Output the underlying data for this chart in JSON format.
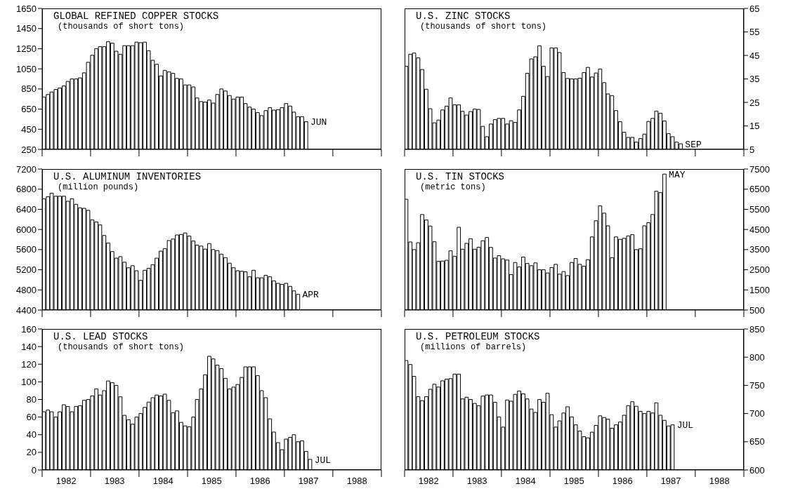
{
  "chart_data": [
    {
      "type": "bar",
      "title": "GLOBAL REFINED COPPER STOCKS",
      "subtitle": "(thousands of short tons)",
      "color": "#ffffff",
      "tick_labels": "y",
      "x": [
        "1982-01",
        "1982-02",
        "1982-03",
        "1982-04",
        "1982-05",
        "1982-06",
        "1982-07",
        "1982-08",
        "1982-09",
        "1982-10",
        "1982-11",
        "1982-12",
        "1983-01",
        "1983-02",
        "1983-03",
        "1983-04",
        "1983-05",
        "1983-06",
        "1983-07",
        "1983-08",
        "1983-09",
        "1983-10",
        "1983-11",
        "1983-12",
        "1984-01",
        "1984-02",
        "1984-03",
        "1984-04",
        "1984-05",
        "1984-06",
        "1984-07",
        "1984-08",
        "1984-09",
        "1984-10",
        "1984-11",
        "1984-12",
        "1985-01",
        "1985-02",
        "1985-03",
        "1985-04",
        "1985-05",
        "1985-06",
        "1985-07",
        "1985-08",
        "1985-09",
        "1985-10",
        "1985-11",
        "1985-12",
        "1986-01",
        "1986-02",
        "1986-03",
        "1986-04",
        "1986-05",
        "1986-06",
        "1986-07",
        "1986-08",
        "1986-09",
        "1986-10",
        "1986-11",
        "1986-12",
        "1987-01",
        "1987-02",
        "1987-03",
        "1987-04",
        "1987-05",
        "1987-06"
      ],
      "values": [
        770,
        795,
        820,
        845,
        860,
        880,
        925,
        950,
        950,
        960,
        1010,
        1115,
        1185,
        1250,
        1270,
        1270,
        1320,
        1305,
        1225,
        1195,
        1280,
        1280,
        1280,
        1315,
        1310,
        1315,
        1230,
        1135,
        1095,
        980,
        1035,
        1020,
        1005,
        955,
        950,
        890,
        890,
        870,
        760,
        725,
        720,
        740,
        710,
        795,
        850,
        830,
        785,
        750,
        770,
        770,
        705,
        670,
        650,
        615,
        585,
        635,
        665,
        640,
        645,
        665,
        705,
        680,
        620,
        575,
        575,
        525
      ],
      "xlim": [
        "1982-01-01",
        "1989-01-01"
      ],
      "xticks": [
        {
          "value": "1982-01-01",
          "label": null
        },
        {
          "value": "1983-01-01",
          "label": null
        },
        {
          "value": "1984-01-01",
          "label": null
        },
        {
          "value": "1985-01-01",
          "label": null
        },
        {
          "value": "1986-01-01",
          "label": null
        },
        {
          "value": "1987-01-01",
          "label": null
        },
        {
          "value": "1988-01-01",
          "label": null
        },
        {
          "value": "1989-01-01",
          "label": null
        }
      ],
      "ylim": [
        250,
        1650
      ],
      "yticks": [
        250,
        450,
        650,
        850,
        1050,
        1250,
        1450,
        1650
      ],
      "annotations": [
        {
          "text": "JUN",
          "x": "1987-06",
          "y": 525
        }
      ]
    },
    {
      "type": "bar",
      "title": "U.S. ZINC STOCKS",
      "subtitle": "(thousands of short tons)",
      "color": "#ffffff",
      "tick_labels": "y",
      "x": [
        "1982-01",
        "1982-02",
        "1982-03",
        "1982-04",
        "1982-05",
        "1982-06",
        "1982-07",
        "1982-08",
        "1982-09",
        "1982-10",
        "1982-11",
        "1982-12",
        "1983-01",
        "1983-02",
        "1983-03",
        "1983-04",
        "1983-05",
        "1983-06",
        "1983-07",
        "1983-08",
        "1983-09",
        "1983-10",
        "1983-11",
        "1983-12",
        "1984-01",
        "1984-02",
        "1984-03",
        "1984-04",
        "1984-05",
        "1984-06",
        "1984-07",
        "1984-08",
        "1984-09",
        "1984-10",
        "1984-11",
        "1984-12",
        "1985-01",
        "1985-02",
        "1985-03",
        "1985-04",
        "1985-05",
        "1985-06",
        "1985-07",
        "1985-08",
        "1985-09",
        "1985-10",
        "1985-11",
        "1985-12",
        "1986-01",
        "1986-02",
        "1986-03",
        "1986-04",
        "1986-05",
        "1986-06",
        "1986-07",
        "1986-08",
        "1986-09",
        "1986-10",
        "1986-11",
        "1986-12",
        "1987-01",
        "1987-02",
        "1987-03",
        "1987-04",
        "1987-05",
        "1987-06",
        "1987-07",
        "1987-08",
        "1987-09"
      ],
      "values": [
        40.4,
        45.5,
        46,
        44,
        39,
        30.6,
        22.3,
        16.3,
        17.5,
        21.8,
        23.4,
        26.9,
        24,
        24,
        21.2,
        19.6,
        21.1,
        22.2,
        22,
        14.8,
        10.4,
        15.8,
        17.7,
        18.2,
        18.2,
        15.8,
        17.2,
        16.5,
        21.8,
        27.6,
        37.4,
        43.5,
        44.4,
        49.1,
        40.4,
        36,
        48.2,
        48.2,
        46.2,
        37.7,
        35.2,
        35,
        35,
        35.3,
        37.7,
        39.9,
        35.8,
        37.5,
        39.2,
        33.4,
        28.6,
        27.9,
        21.5,
        16.8,
        12.3,
        10.1,
        10.1,
        8.1,
        9.6,
        11.5,
        16.9,
        18.2,
        21.3,
        20.4,
        17.1,
        11.7,
        10.4,
        8.1,
        7.4
      ],
      "xlim": [
        "1982-01-01",
        "1989-01-01"
      ],
      "xticks": [
        {
          "value": "1982-01-01",
          "label": null
        },
        {
          "value": "1983-01-01",
          "label": null
        },
        {
          "value": "1984-01-01",
          "label": null
        },
        {
          "value": "1985-01-01",
          "label": null
        },
        {
          "value": "1986-01-01",
          "label": null
        },
        {
          "value": "1987-01-01",
          "label": null
        },
        {
          "value": "1988-01-01",
          "label": null
        },
        {
          "value": "1989-01-01",
          "label": null
        }
      ],
      "ylim": [
        5,
        65
      ],
      "yticks": [
        5,
        15,
        25,
        35,
        45,
        55,
        65
      ],
      "annotations": [
        {
          "text": "SEP",
          "x": "1987-09",
          "y": 7.4
        }
      ]
    },
    {
      "type": "bar",
      "title": "U.S. ALUMINUM INVENTORIES",
      "subtitle": "(million pounds)",
      "color": "#ffffff",
      "tick_labels": "y",
      "x": [
        "1982-01",
        "1982-02",
        "1982-03",
        "1982-04",
        "1982-05",
        "1982-06",
        "1982-07",
        "1982-08",
        "1982-09",
        "1982-10",
        "1982-11",
        "1982-12",
        "1983-01",
        "1983-02",
        "1983-03",
        "1983-04",
        "1983-05",
        "1983-06",
        "1983-07",
        "1983-08",
        "1983-09",
        "1983-10",
        "1983-11",
        "1983-12",
        "1984-01",
        "1984-02",
        "1984-03",
        "1984-04",
        "1984-05",
        "1984-06",
        "1984-07",
        "1984-08",
        "1984-09",
        "1984-10",
        "1984-11",
        "1984-12",
        "1985-01",
        "1985-02",
        "1985-03",
        "1985-04",
        "1985-05",
        "1985-06",
        "1985-07",
        "1985-08",
        "1985-09",
        "1985-10",
        "1985-11",
        "1985-12",
        "1986-01",
        "1986-02",
        "1986-03",
        "1986-04",
        "1986-05",
        "1986-06",
        "1986-07",
        "1986-08",
        "1986-09",
        "1986-10",
        "1986-11",
        "1986-12",
        "1987-01",
        "1987-02",
        "1987-03",
        "1987-04"
      ],
      "values": [
        6610,
        6650,
        6720,
        6660,
        6660,
        6660,
        6560,
        6610,
        6500,
        6430,
        6420,
        6380,
        6190,
        6150,
        6090,
        5880,
        5730,
        5560,
        5430,
        5460,
        5350,
        5240,
        5280,
        5180,
        4990,
        5190,
        5230,
        5300,
        5430,
        5570,
        5620,
        5780,
        5810,
        5890,
        5900,
        5930,
        5870,
        5770,
        5690,
        5670,
        5610,
        5720,
        5600,
        5580,
        5510,
        5440,
        5330,
        5240,
        5180,
        5170,
        5160,
        5060,
        5190,
        5040,
        5040,
        5090,
        5060,
        4980,
        4930,
        4910,
        4930,
        4870,
        4780,
        4710
      ],
      "xlim": [
        "1982-01-01",
        "1989-01-01"
      ],
      "xticks": [
        {
          "value": "1982-01-01",
          "label": null
        },
        {
          "value": "1983-01-01",
          "label": null
        },
        {
          "value": "1984-01-01",
          "label": null
        },
        {
          "value": "1985-01-01",
          "label": null
        },
        {
          "value": "1986-01-01",
          "label": null
        },
        {
          "value": "1987-01-01",
          "label": null
        },
        {
          "value": "1988-01-01",
          "label": null
        },
        {
          "value": "1989-01-01",
          "label": null
        }
      ],
      "ylim": [
        4400,
        7200
      ],
      "yticks": [
        4400,
        4800,
        5200,
        5600,
        6000,
        6400,
        6800,
        7200
      ],
      "annotations": [
        {
          "text": "APR",
          "x": "1987-04",
          "y": 4710
        }
      ]
    },
    {
      "type": "bar",
      "title": "U.S. TIN STOCKS",
      "subtitle": "(metric tons)",
      "color": "#ffffff",
      "tick_labels": "y",
      "x": [
        "1982-01",
        "1982-02",
        "1982-03",
        "1982-04",
        "1982-05",
        "1982-06",
        "1982-07",
        "1982-08",
        "1982-09",
        "1982-10",
        "1982-11",
        "1982-12",
        "1983-01",
        "1983-02",
        "1983-03",
        "1983-04",
        "1983-05",
        "1983-06",
        "1983-07",
        "1983-08",
        "1983-09",
        "1983-10",
        "1983-11",
        "1983-12",
        "1984-01",
        "1984-02",
        "1984-03",
        "1984-04",
        "1984-05",
        "1984-06",
        "1984-07",
        "1984-08",
        "1984-09",
        "1984-10",
        "1984-11",
        "1984-12",
        "1985-01",
        "1985-02",
        "1985-03",
        "1985-04",
        "1985-05",
        "1985-06",
        "1985-07",
        "1985-08",
        "1985-09",
        "1985-10",
        "1985-11",
        "1985-12",
        "1986-01",
        "1986-02",
        "1986-03",
        "1986-04",
        "1986-05",
        "1986-06",
        "1986-07",
        "1986-08",
        "1986-09",
        "1986-10",
        "1986-11",
        "1986-12",
        "1987-01",
        "1987-02",
        "1987-03",
        "1987-04",
        "1987-05"
      ],
      "values": [
        6000,
        3880,
        3500,
        3840,
        5240,
        4970,
        4670,
        3890,
        2920,
        2930,
        2970,
        3440,
        3170,
        4610,
        3520,
        3810,
        4040,
        3520,
        3620,
        3940,
        4100,
        3610,
        3080,
        3200,
        3040,
        2980,
        2260,
        2860,
        2640,
        3130,
        2810,
        2700,
        2840,
        2500,
        2500,
        2340,
        2610,
        2770,
        2280,
        2410,
        2210,
        2860,
        3060,
        2770,
        2680,
        3000,
        4130,
        4930,
        5670,
        5310,
        4680,
        3100,
        4130,
        4010,
        4060,
        4180,
        4240,
        3500,
        3540,
        4680,
        4840,
        5240,
        6400,
        6330,
        7250
      ],
      "xlim": [
        "1982-01-01",
        "1989-01-01"
      ],
      "xticks": [
        {
          "value": "1982-01-01",
          "label": null
        },
        {
          "value": "1983-01-01",
          "label": null
        },
        {
          "value": "1984-01-01",
          "label": null
        },
        {
          "value": "1985-01-01",
          "label": null
        },
        {
          "value": "1986-01-01",
          "label": null
        },
        {
          "value": "1987-01-01",
          "label": null
        },
        {
          "value": "1988-01-01",
          "label": null
        },
        {
          "value": "1989-01-01",
          "label": null
        }
      ],
      "ylim": [
        500,
        7500
      ],
      "yticks": [
        500,
        1500,
        2500,
        3500,
        4500,
        5500,
        6500,
        7500
      ],
      "annotations": [
        {
          "text": "MAY",
          "x": "1987-05",
          "y": 7250
        }
      ]
    },
    {
      "type": "bar",
      "title": "U.S. LEAD STOCKS",
      "subtitle": "(thousands of short tons)",
      "color": "#ffffff",
      "x": [
        "1982-01",
        "1982-02",
        "1982-03",
        "1982-04",
        "1982-05",
        "1982-06",
        "1982-07",
        "1982-08",
        "1982-09",
        "1982-10",
        "1982-11",
        "1982-12",
        "1983-01",
        "1983-02",
        "1983-03",
        "1983-04",
        "1983-05",
        "1983-06",
        "1983-07",
        "1983-08",
        "1983-09",
        "1983-10",
        "1983-11",
        "1983-12",
        "1984-01",
        "1984-02",
        "1984-03",
        "1984-04",
        "1984-05",
        "1984-06",
        "1984-07",
        "1984-08",
        "1984-09",
        "1984-10",
        "1984-11",
        "1984-12",
        "1985-01",
        "1985-02",
        "1985-03",
        "1985-04",
        "1985-05",
        "1985-06",
        "1985-07",
        "1985-08",
        "1985-09",
        "1985-10",
        "1985-11",
        "1985-12",
        "1986-01",
        "1986-02",
        "1986-03",
        "1986-04",
        "1986-05",
        "1986-06",
        "1986-07",
        "1986-08",
        "1986-09",
        "1986-10",
        "1986-11",
        "1986-12",
        "1987-01",
        "1987-02",
        "1987-03",
        "1987-04",
        "1987-05",
        "1987-06",
        "1987-07"
      ],
      "values": [
        66,
        68,
        66,
        60,
        66,
        74,
        72,
        66,
        72,
        73,
        79,
        80,
        84,
        92,
        85,
        90,
        101,
        99,
        96,
        83,
        62,
        57,
        52,
        60,
        64,
        71,
        77,
        82,
        85,
        84,
        86,
        79,
        65,
        67,
        54,
        50,
        49,
        60,
        80,
        92,
        108,
        129,
        126,
        119,
        115,
        104,
        92,
        94,
        97,
        105,
        117,
        117,
        117,
        107,
        90,
        82,
        58,
        43,
        31,
        23,
        35,
        37,
        40,
        32,
        33,
        21,
        12
      ],
      "xlim": [
        "1982-01-01",
        "1989-01-01"
      ],
      "xticks": [
        {
          "value": "1982-01-01",
          "label": null
        },
        {
          "value": "1982-07-01",
          "label": "1982"
        },
        {
          "value": "1983-01-01",
          "label": null
        },
        {
          "value": "1983-07-01",
          "label": "1983"
        },
        {
          "value": "1984-01-01",
          "label": null
        },
        {
          "value": "1984-07-01",
          "label": "1984"
        },
        {
          "value": "1985-01-01",
          "label": null
        },
        {
          "value": "1985-07-01",
          "label": "1985"
        },
        {
          "value": "1986-01-01",
          "label": null
        },
        {
          "value": "1986-07-01",
          "label": "1986"
        },
        {
          "value": "1987-01-01",
          "label": null
        },
        {
          "value": "1987-07-01",
          "label": "1987"
        },
        {
          "value": "1988-01-01",
          "label": null
        },
        {
          "value": "1988-07-01",
          "label": "1988"
        },
        {
          "value": "1989-01-01",
          "label": null
        }
      ],
      "ylim": [
        0,
        160
      ],
      "yticks": [
        0,
        20,
        40,
        60,
        80,
        100,
        120,
        140,
        160
      ],
      "annotations": [
        {
          "text": "JUL",
          "x": "1987-07",
          "y": 12
        }
      ]
    },
    {
      "type": "bar",
      "title": "U.S. PETROLEUM STOCKS",
      "subtitle": "(millions of barrels)",
      "color": "#ffffff",
      "x": [
        "1982-01",
        "1982-02",
        "1982-03",
        "1982-04",
        "1982-05",
        "1982-06",
        "1982-07",
        "1982-08",
        "1982-09",
        "1982-10",
        "1982-11",
        "1982-12",
        "1983-01",
        "1983-02",
        "1983-03",
        "1983-04",
        "1983-05",
        "1983-06",
        "1983-07",
        "1983-08",
        "1983-09",
        "1983-10",
        "1983-11",
        "1983-12",
        "1984-01",
        "1984-02",
        "1984-03",
        "1984-04",
        "1984-05",
        "1984-06",
        "1984-07",
        "1984-08",
        "1984-09",
        "1984-10",
        "1984-11",
        "1984-12",
        "1985-01",
        "1985-02",
        "1985-03",
        "1985-04",
        "1985-05",
        "1985-06",
        "1985-07",
        "1985-08",
        "1985-09",
        "1985-10",
        "1985-11",
        "1985-12",
        "1986-01",
        "1986-02",
        "1986-03",
        "1986-04",
        "1986-05",
        "1986-06",
        "1986-07",
        "1986-08",
        "1986-09",
        "1986-10",
        "1986-11",
        "1986-12",
        "1987-01",
        "1987-02",
        "1987-03",
        "1987-04",
        "1987-05",
        "1987-06",
        "1987-07"
      ],
      "values": [
        794,
        787,
        766,
        730,
        723,
        730,
        743,
        752,
        747,
        758,
        761,
        762,
        770,
        770,
        726,
        729,
        725,
        718,
        714,
        731,
        733,
        733,
        720,
        694,
        676,
        724,
        722,
        734,
        740,
        735,
        726,
        708,
        702,
        725,
        720,
        736,
        698,
        676,
        687,
        701,
        712,
        694,
        680,
        669,
        659,
        657,
        667,
        679,
        696,
        693,
        690,
        674,
        680,
        685,
        697,
        714,
        721,
        713,
        704,
        700,
        704,
        701,
        719,
        697,
        688,
        678,
        680
      ],
      "xlim": [
        "1982-01-01",
        "1989-01-01"
      ],
      "xticks": [
        {
          "value": "1982-01-01",
          "label": null
        },
        {
          "value": "1982-07-01",
          "label": "1982"
        },
        {
          "value": "1983-01-01",
          "label": null
        },
        {
          "value": "1983-07-01",
          "label": "1983"
        },
        {
          "value": "1984-01-01",
          "label": null
        },
        {
          "value": "1984-07-01",
          "label": "1984"
        },
        {
          "value": "1985-01-01",
          "label": null
        },
        {
          "value": "1985-07-01",
          "label": "1985"
        },
        {
          "value": "1986-01-01",
          "label": null
        },
        {
          "value": "1986-07-01",
          "label": "1986"
        },
        {
          "value": "1987-01-01",
          "label": null
        },
        {
          "value": "1987-07-01",
          "label": "1987"
        },
        {
          "value": "1988-01-01",
          "label": null
        },
        {
          "value": "1988-07-01",
          "label": "1988"
        },
        {
          "value": "1989-01-01",
          "label": null
        }
      ],
      "ylim": [
        600,
        850
      ],
      "yticks": [
        600,
        650,
        700,
        750,
        800,
        850
      ],
      "annotations": [
        {
          "text": "JUL",
          "x": "1987-07",
          "y": 680
        }
      ]
    }
  ]
}
